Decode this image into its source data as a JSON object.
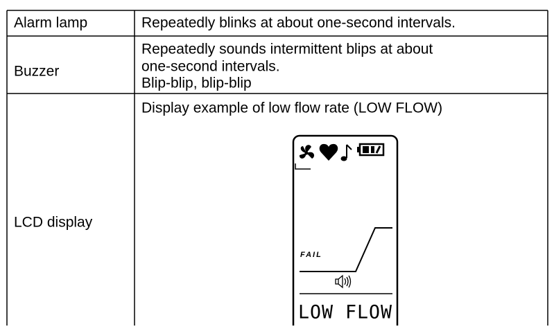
{
  "table": {
    "rows": [
      {
        "label": "Alarm lamp",
        "lines": [
          "Repeatedly blinks at about one-second intervals."
        ]
      },
      {
        "label": "Buzzer",
        "lines": [
          "Repeatedly sounds intermittent blips at about",
          "one-second intervals.",
          "Blip-blip, blip-blip"
        ]
      },
      {
        "label": "LCD display",
        "lines": [
          "Display example of low flow rate (LOW FLOW)"
        ]
      }
    ]
  },
  "lcd": {
    "status": "FAIL",
    "message": "LOW FLOW"
  }
}
